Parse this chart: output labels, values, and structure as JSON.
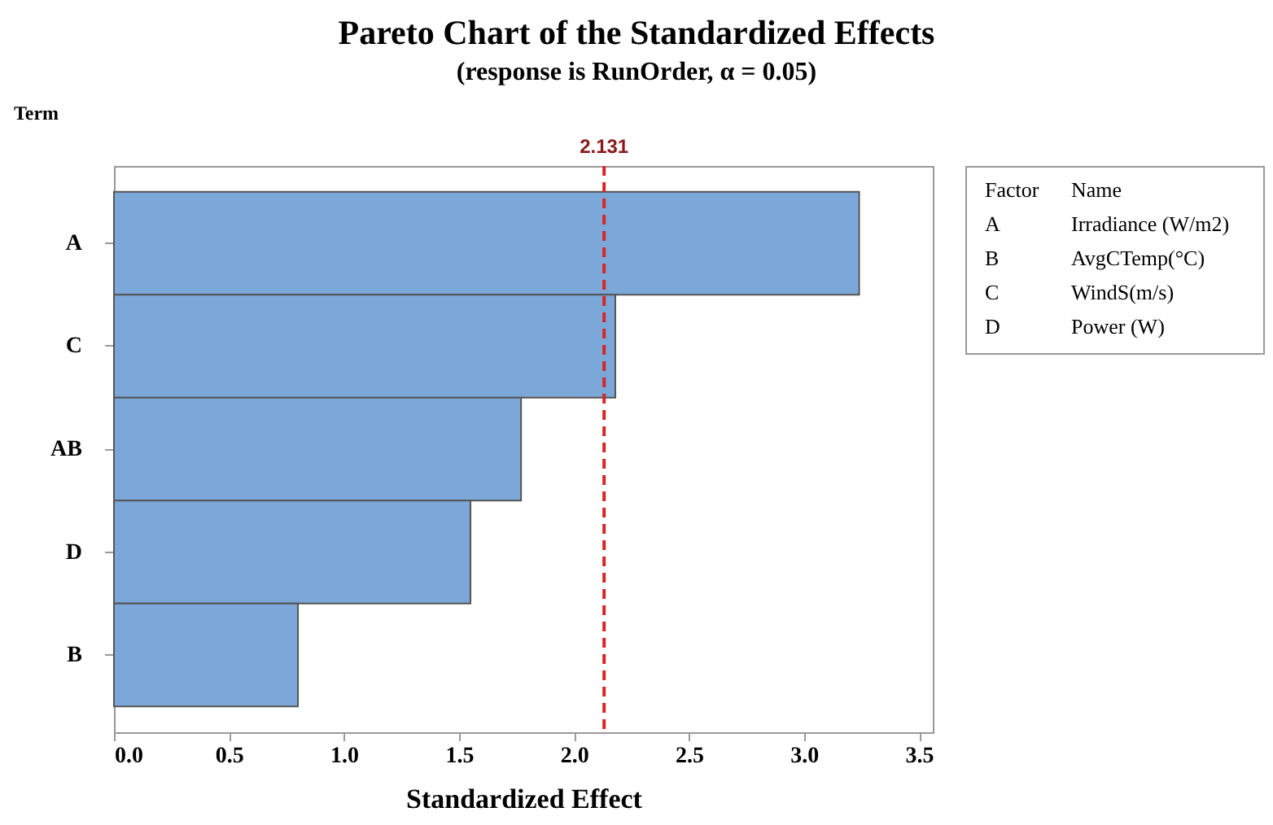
{
  "chart_data": {
    "type": "bar",
    "orientation": "horizontal",
    "title": "Pareto Chart of the Standardized Effects",
    "subtitle": "(response is RunOrder, α = 0.05)",
    "xlabel": "Standardized Effect",
    "ylabel": "Term",
    "categories": [
      "A",
      "C",
      "AB",
      "D",
      "B"
    ],
    "values": [
      3.24,
      2.18,
      1.77,
      1.55,
      0.8
    ],
    "color": "#7ba7d9",
    "xlim": [
      0,
      3.56
    ],
    "xticks": [
      {
        "value": 0,
        "label": "0.0"
      },
      0.5,
      {
        "value": 1,
        "label": "1.0"
      },
      1.5,
      {
        "value": 2,
        "label": "2.0"
      },
      2.5,
      {
        "value": 3,
        "label": "3.0"
      },
      3.5
    ],
    "ref_lines": [
      {
        "axis": "x",
        "value": 2.131,
        "label": "2.131",
        "color": "#d62728",
        "line_style": "dashed"
      }
    ],
    "annotations": [
      "Factor",
      "Name",
      "A",
      "Irradiance (W/m2)",
      "B",
      "AvgCTemp(°C)",
      "C",
      "WindS(m/s)",
      "D",
      "Power (W)"
    ],
    "grid": false
  }
}
